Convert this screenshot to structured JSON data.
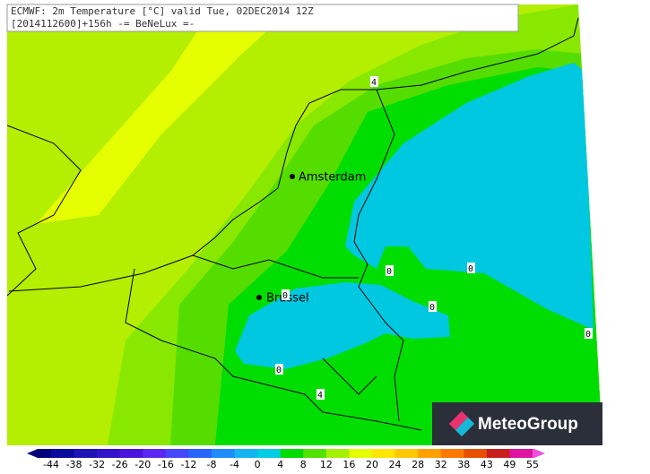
{
  "header": {
    "line1": "ECMWF: 2m Temperature [°C] valid Tue, 02DEC2014 12Z",
    "line2": "[2014112600]+156h -= BeNeLux =-"
  },
  "cities": [
    "Amsterdam",
    "Brussel"
  ],
  "contour_labels": [
    "4",
    "0",
    "0",
    "0",
    "0",
    "0",
    "0",
    "4"
  ],
  "logo": "MeteoGroup",
  "colorbar": {
    "labels": [
      -44,
      -38,
      -32,
      -26,
      -20,
      -16,
      -12,
      -8,
      -4,
      0,
      4,
      8,
      12,
      16,
      20,
      24,
      28,
      32,
      38,
      43,
      49,
      55
    ],
    "colors": [
      "#00007a",
      "#0a0a9c",
      "#1e14b4",
      "#3214c8",
      "#4b14dc",
      "#5a28f0",
      "#4646ff",
      "#2864ff",
      "#1e8cff",
      "#14b4f0",
      "#00cde1",
      "#00dc00",
      "#55e100",
      "#a5f000",
      "#e6ff00",
      "#ffe600",
      "#ffc800",
      "#ffa000",
      "#ff7800",
      "#e65000",
      "#c81e1e",
      "#dc14a0",
      "#f050dc"
    ]
  }
}
